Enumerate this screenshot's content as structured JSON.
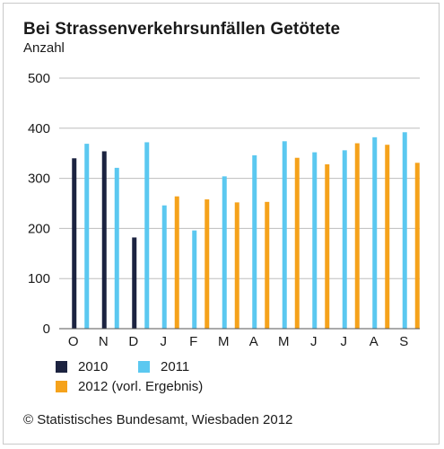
{
  "chart_data": {
    "type": "bar",
    "title": "Bei Strassenverkehrsunfällen Getötete",
    "ylabel": "Anzahl",
    "xlabel": "",
    "categories": [
      "O",
      "N",
      "D",
      "J",
      "F",
      "M",
      "A",
      "M",
      "J",
      "J",
      "A",
      "S"
    ],
    "ylim": [
      0,
      500
    ],
    "yticks": [
      0,
      100,
      200,
      300,
      400,
      500
    ],
    "grid": true,
    "legend_position": "bottom-left",
    "series": [
      {
        "name": "2010",
        "color": "#1c2340",
        "values": [
          340,
          354,
          182,
          null,
          null,
          null,
          null,
          null,
          null,
          null,
          null,
          null
        ]
      },
      {
        "name": "2011",
        "color": "#5bc8f0",
        "values": [
          369,
          321,
          372,
          246,
          196,
          304,
          346,
          374,
          352,
          356,
          382,
          392
        ]
      },
      {
        "name": "2012 (vorl. Ergebnis)",
        "color": "#f5a21b",
        "values": [
          null,
          null,
          null,
          264,
          258,
          252,
          253,
          341,
          328,
          370,
          367,
          331
        ]
      }
    ]
  },
  "source": "© Statistisches Bundesamt, Wiesbaden 2012"
}
